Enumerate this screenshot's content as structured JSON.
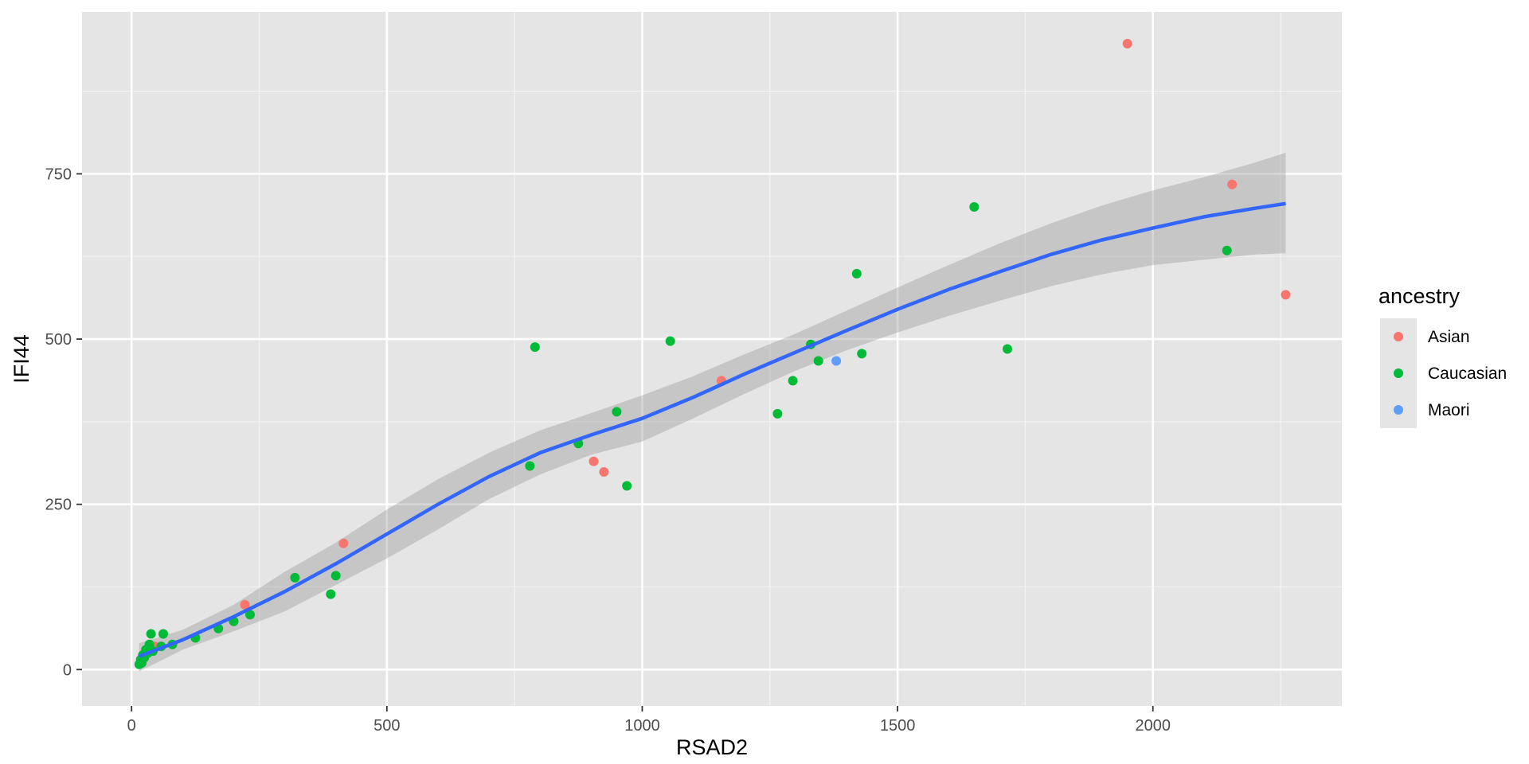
{
  "chart_data": {
    "type": "scatter",
    "xlabel": "RSAD2",
    "ylabel": "IFI44",
    "xlim": [
      -97,
      2370
    ],
    "ylim": [
      -55,
      995
    ],
    "x_ticks": [
      0,
      500,
      1000,
      1500,
      2000
    ],
    "x_tick_labels": [
      "0",
      "500",
      "1000",
      "1500",
      "2000"
    ],
    "y_ticks": [
      0,
      250,
      500,
      750
    ],
    "y_tick_labels": [
      "0",
      "250",
      "500",
      "750"
    ],
    "grid": true,
    "legend": {
      "title": "ancestry",
      "position": "right",
      "entries": [
        {
          "label": "Asian",
          "color": "#F8766D"
        },
        {
          "label": "Caucasian",
          "color": "#00BA38"
        },
        {
          "label": "Maori",
          "color": "#619CFF"
        }
      ]
    },
    "series": [
      {
        "name": "Asian",
        "color": "#F8766D",
        "points": [
          [
            1950,
            947
          ],
          [
            2155,
            734
          ],
          [
            2260,
            567
          ],
          [
            1155,
            437
          ],
          [
            905,
            315
          ],
          [
            925,
            299
          ],
          [
            415,
            191
          ],
          [
            222,
            98
          ],
          [
            45,
            35
          ],
          [
            30,
            28
          ]
        ]
      },
      {
        "name": "Caucasian",
        "color": "#00BA38",
        "points": [
          [
            1650,
            700
          ],
          [
            1420,
            599
          ],
          [
            2145,
            634
          ],
          [
            1715,
            485
          ],
          [
            1430,
            478
          ],
          [
            1345,
            467
          ],
          [
            1330,
            492
          ],
          [
            1295,
            437
          ],
          [
            1265,
            387
          ],
          [
            1055,
            497
          ],
          [
            790,
            488
          ],
          [
            950,
            390
          ],
          [
            875,
            342
          ],
          [
            780,
            308
          ],
          [
            970,
            278
          ],
          [
            400,
            142
          ],
          [
            390,
            114
          ],
          [
            320,
            139
          ],
          [
            232,
            83
          ],
          [
            200,
            73
          ],
          [
            170,
            62
          ],
          [
            125,
            48
          ],
          [
            80,
            38
          ],
          [
            62,
            54
          ],
          [
            38,
            54
          ],
          [
            58,
            35
          ],
          [
            35,
            38
          ],
          [
            28,
            30
          ],
          [
            22,
            22
          ],
          [
            18,
            15
          ],
          [
            15,
            8
          ],
          [
            20,
            10
          ],
          [
            25,
            18
          ],
          [
            32,
            25
          ],
          [
            42,
            28
          ]
        ]
      },
      {
        "name": "Maori",
        "color": "#619CFF",
        "points": [
          [
            1380,
            467
          ]
        ]
      }
    ],
    "smooth": {
      "method": "loess",
      "color": "#3366FF",
      "band_color": "#999999",
      "x": [
        15,
        100,
        200,
        300,
        400,
        500,
        600,
        700,
        800,
        900,
        1000,
        1100,
        1200,
        1300,
        1400,
        1500,
        1600,
        1700,
        1800,
        1900,
        2000,
        2100,
        2200,
        2260
      ],
      "y": [
        20,
        45,
        80,
        118,
        160,
        205,
        250,
        292,
        328,
        355,
        380,
        412,
        447,
        480,
        513,
        545,
        575,
        602,
        628,
        650,
        668,
        685,
        698,
        705
      ],
      "lower": [
        -3,
        30,
        58,
        88,
        128,
        168,
        212,
        258,
        295,
        325,
        345,
        380,
        417,
        452,
        483,
        510,
        535,
        558,
        580,
        598,
        612,
        620,
        628,
        630
      ],
      "upper": [
        40,
        60,
        98,
        148,
        192,
        242,
        288,
        328,
        362,
        388,
        415,
        444,
        477,
        508,
        543,
        578,
        612,
        645,
        675,
        702,
        725,
        745,
        767,
        782
      ]
    }
  }
}
